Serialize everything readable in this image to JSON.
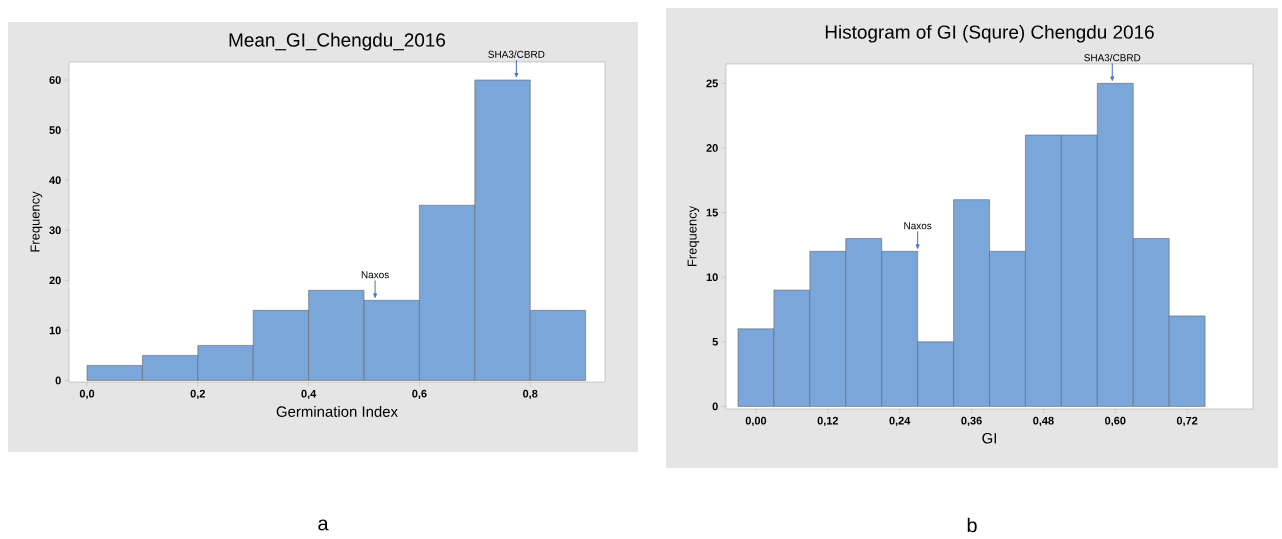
{
  "chart_data": [
    {
      "type": "histogram",
      "title": "Mean_GI_Chengdu_2016",
      "xlabel": "Germination Index",
      "ylabel": "Frequency",
      "bins": [
        0,
        0.1,
        0.2,
        0.3,
        0.4,
        0.5,
        0.6,
        0.7,
        0.8,
        0.9
      ],
      "values": [
        3,
        5,
        7,
        14,
        18,
        16,
        35,
        60,
        14
      ],
      "color": "#7ba6d9",
      "xlim": [
        -0.0325,
        0.935
      ],
      "ylim": [
        -0.3,
        63.6
      ],
      "xticks": [
        {
          "value": 0,
          "label": "0,0"
        },
        {
          "value": 0.2,
          "label": "0,2"
        },
        {
          "value": 0.4,
          "label": "0,4"
        },
        {
          "value": 0.6,
          "label": "0,6"
        },
        {
          "value": 0.8,
          "label": "0,8"
        }
      ],
      "yticks": [
        0,
        10,
        20,
        30,
        40,
        50,
        60
      ],
      "annotations": [
        {
          "text": "Naxos",
          "x": 0.52,
          "y": 16
        },
        {
          "text": "SHA3/CBRD",
          "x": 0.775,
          "y": 60
        },
        "a"
      ]
    },
    {
      "type": "histogram",
      "title": "Histogram of GI (Squre) Chengdu 2016",
      "xlabel": "GI",
      "ylabel": "Frequency",
      "bins": [
        -0.03,
        0.03,
        0.09,
        0.15,
        0.21,
        0.27,
        0.33,
        0.39,
        0.45,
        0.51,
        0.57,
        0.63,
        0.69,
        0.75
      ],
      "values": [
        6,
        9,
        12,
        13,
        12,
        5,
        16,
        12,
        21,
        21,
        25,
        13,
        7
      ],
      "color": "#7ba6d9",
      "xlim": [
        -0.05,
        0.83
      ],
      "ylim": [
        -0.2,
        26.5
      ],
      "xticks": [
        {
          "value": 0,
          "label": "0,00"
        },
        {
          "value": 0.12,
          "label": "0,12"
        },
        {
          "value": 0.24,
          "label": "0,24"
        },
        {
          "value": 0.36,
          "label": "0,36"
        },
        {
          "value": 0.48,
          "label": "0,48"
        },
        {
          "value": 0.6,
          "label": "0,60"
        },
        {
          "value": 0.72,
          "label": "0,72"
        }
      ],
      "yticks": [
        0,
        5,
        10,
        15,
        20,
        25
      ],
      "annotations": [
        {
          "text": "Naxos",
          "x": 0.27,
          "y": 12
        },
        {
          "text": "SHA3/CBRD",
          "x": 0.595,
          "y": 25
        },
        "b"
      ]
    }
  ]
}
